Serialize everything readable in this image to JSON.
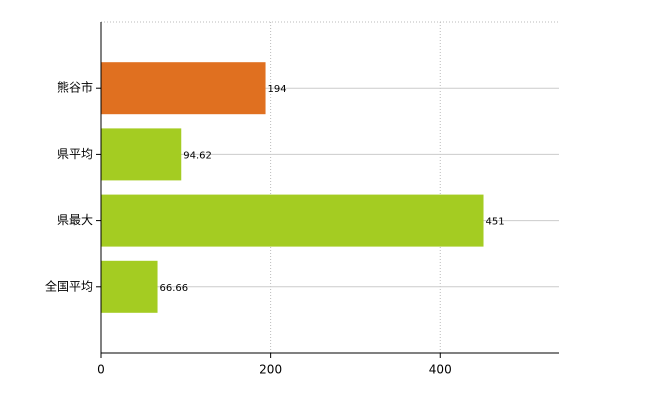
{
  "chart_data": {
    "type": "barh",
    "categories": [
      "熊谷市",
      "県平均",
      "県最大",
      "全国平均"
    ],
    "values": [
      194,
      94.62,
      451,
      66.66
    ],
    "colors": [
      "#e07020",
      "#a4cc22",
      "#a4cc22",
      "#a4cc22"
    ],
    "xlim": [
      0,
      540
    ],
    "xticks": [
      0,
      200,
      400
    ],
    "grid": true
  }
}
